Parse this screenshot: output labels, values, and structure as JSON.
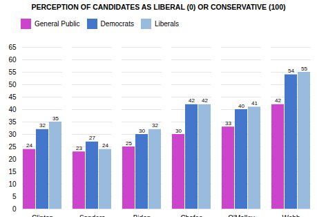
{
  "chart_data": {
    "type": "bar",
    "title": "PERCEPTION OF CANDIDATES AS LIBERAL (0) OR CONSERVATIVE (100)",
    "categories": [
      "Clinton",
      "Sanders",
      "Biden",
      "Chafee",
      "O'Malley",
      "Webb"
    ],
    "series": [
      {
        "name": "General Public",
        "color": "#CC44CC",
        "values": [
          24,
          23,
          25,
          30,
          33,
          42
        ]
      },
      {
        "name": "Democrats",
        "color": "#4477CC",
        "values": [
          32,
          27,
          30,
          42,
          40,
          54
        ]
      },
      {
        "name": "Liberals",
        "color": "#99BBDD",
        "values": [
          35,
          24,
          32,
          42,
          41,
          55
        ]
      }
    ],
    "ylim": [
      0,
      65
    ],
    "yticks": [
      0,
      5,
      10,
      15,
      20,
      25,
      30,
      35,
      40,
      45,
      50,
      55,
      60,
      65
    ],
    "grid": true,
    "legend": "upper left",
    "data_labels": true
  }
}
